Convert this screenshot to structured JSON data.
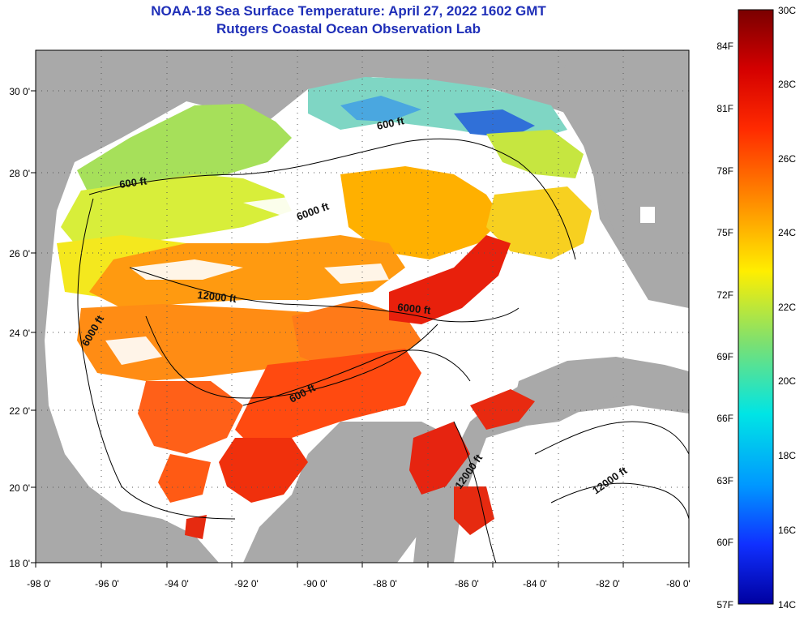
{
  "title": {
    "line1": "NOAA-18 Sea Surface Temperature:  April 27, 2022 1602 GMT",
    "line2": "Rutgers Coastal Ocean Observation Lab"
  },
  "colors": {
    "title": "#1f2fb8",
    "land": "#a9a9a9",
    "cloud": "#ffffff"
  },
  "axes": {
    "lon_labels": [
      "-98 0'",
      "-96 0'",
      "-94 0'",
      "-92 0'",
      "-90 0'",
      "-88 0'",
      "-86 0'",
      "-84 0'",
      "-82 0'",
      "-80 0'"
    ],
    "lat_labels": [
      "30 0'",
      "28 0'",
      "26 0'",
      "24 0'",
      "22 0'",
      "20 0'",
      "18 0'"
    ]
  },
  "contour_labels": [
    "600 ft",
    "600 ft",
    "6000 ft",
    "12000 ft",
    "6000 ft",
    "6000 ft",
    "600 ft",
    "12000 ft",
    "12000 ft"
  ],
  "colorbar": {
    "celsius": [
      "30C",
      "28C",
      "26C",
      "24C",
      "22C",
      "20C",
      "18C",
      "16C",
      "14C"
    ],
    "fahrenheit": [
      "84F",
      "81F",
      "78F",
      "75F",
      "72F",
      "69F",
      "66F",
      "63F",
      "60F",
      "57F"
    ]
  }
}
